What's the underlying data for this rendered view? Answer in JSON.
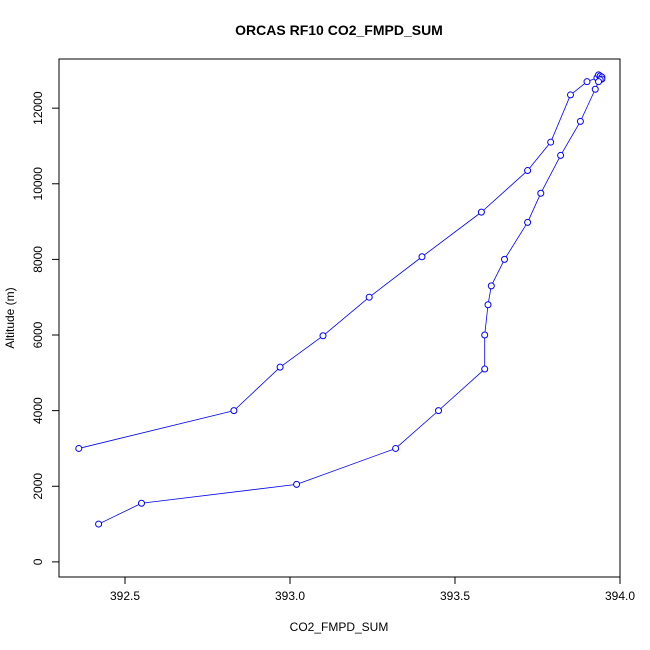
{
  "chart_data": {
    "type": "line",
    "title": "ORCAS RF10 CO2_FMPD_SUM",
    "xlabel": "CO2_FMPD_SUM",
    "ylabel": "Altitude (m)",
    "xlim": [
      392.3,
      394.0
    ],
    "ylim": [
      -400,
      13300
    ],
    "x_ticks": [
      392.5,
      393.0,
      393.5,
      394.0
    ],
    "x_tick_labels": [
      "392.5",
      "393.0",
      "393.5",
      "394.0"
    ],
    "y_ticks": [
      0,
      2000,
      4000,
      6000,
      8000,
      10000,
      12000
    ],
    "y_tick_labels": [
      "0",
      "2000",
      "4000",
      "6000",
      "8000",
      "10000",
      "12000"
    ],
    "grid": false,
    "legend": "none",
    "line_color": "#0000ff",
    "marker": "open-circle",
    "series": [
      {
        "points": [
          [
            392.36,
            3000
          ],
          [
            392.83,
            4000
          ],
          [
            392.97,
            5150
          ],
          [
            393.1,
            5980
          ],
          [
            393.24,
            7000
          ],
          [
            393.4,
            8070
          ],
          [
            393.58,
            9250
          ],
          [
            393.72,
            10350
          ],
          [
            393.79,
            11100
          ],
          [
            393.85,
            12350
          ],
          [
            393.9,
            12700
          ],
          [
            393.93,
            12800
          ],
          [
            393.935,
            12880
          ],
          [
            393.94,
            12850
          ],
          [
            393.945,
            12820
          ],
          [
            393.945,
            12770
          ],
          [
            393.94,
            12750
          ],
          [
            393.935,
            12700
          ],
          [
            393.925,
            12500
          ],
          [
            393.88,
            11650
          ],
          [
            393.82,
            10750
          ],
          [
            393.76,
            9750
          ],
          [
            393.72,
            8980
          ],
          [
            393.65,
            8000
          ],
          [
            393.61,
            7300
          ],
          [
            393.6,
            6800
          ],
          [
            393.59,
            6000
          ],
          [
            393.59,
            5100
          ],
          [
            393.45,
            4000
          ],
          [
            393.32,
            3000
          ],
          [
            393.02,
            2050
          ],
          [
            392.55,
            1550
          ],
          [
            392.42,
            1000
          ]
        ]
      }
    ]
  }
}
